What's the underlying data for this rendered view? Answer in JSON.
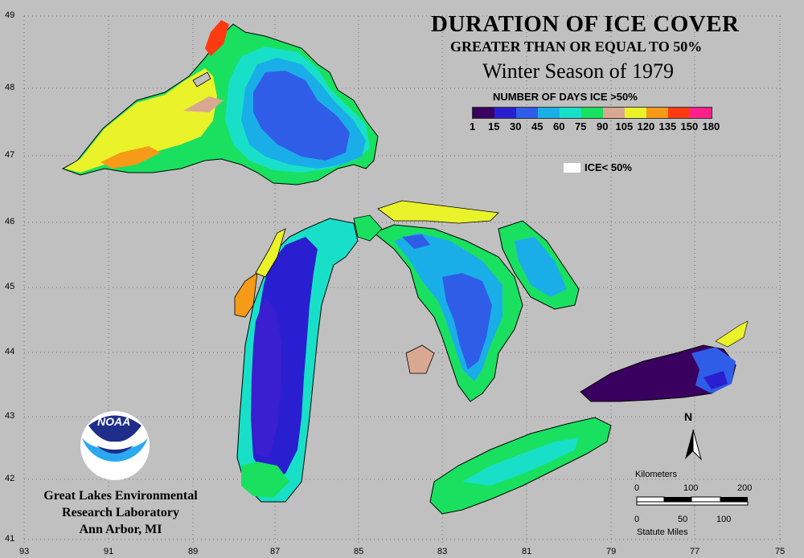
{
  "title": {
    "line1": "DURATION OF ICE COVER",
    "line2": "GREATER THAN OR EQUAL TO 50%",
    "line3": "Winter Season of 1979"
  },
  "legend": {
    "title": "NUMBER OF DAYS ICE >50%",
    "bins": [
      {
        "color": "#3a005f"
      },
      {
        "color": "#2a1fd0"
      },
      {
        "color": "#2f5de8"
      },
      {
        "color": "#1aaee9"
      },
      {
        "color": "#18e0c8"
      },
      {
        "color": "#1ae060"
      },
      {
        "color": "#d8a890"
      },
      {
        "color": "#eaf22a"
      },
      {
        "color": "#f59b18"
      },
      {
        "color": "#ff3a10"
      },
      {
        "color": "#ff1f8a"
      }
    ],
    "ticks": [
      "1",
      "15",
      "30",
      "45",
      "60",
      "75",
      "90",
      "105",
      "120",
      "135",
      "150",
      "180"
    ],
    "ice_label": "ICE< 50%"
  },
  "latitudes": [
    "49",
    "48",
    "47",
    "46",
    "45",
    "44",
    "43",
    "42",
    "41"
  ],
  "longitudes": [
    "93",
    "91",
    "89",
    "87",
    "85",
    "83",
    "81",
    "79",
    "77",
    "75"
  ],
  "scale": {
    "km_label": "Kilometers",
    "km_ticks": [
      "0",
      "100",
      "200"
    ],
    "mi_label": "Statute Miles",
    "mi_ticks": [
      "0",
      "50",
      "100"
    ]
  },
  "north_label": "N",
  "logo": {
    "text": "NOAA"
  },
  "lab": {
    "line1": "Great Lakes Environmental",
    "line2": "Research Laboratory",
    "line3": "Ann Arbor, MI"
  }
}
